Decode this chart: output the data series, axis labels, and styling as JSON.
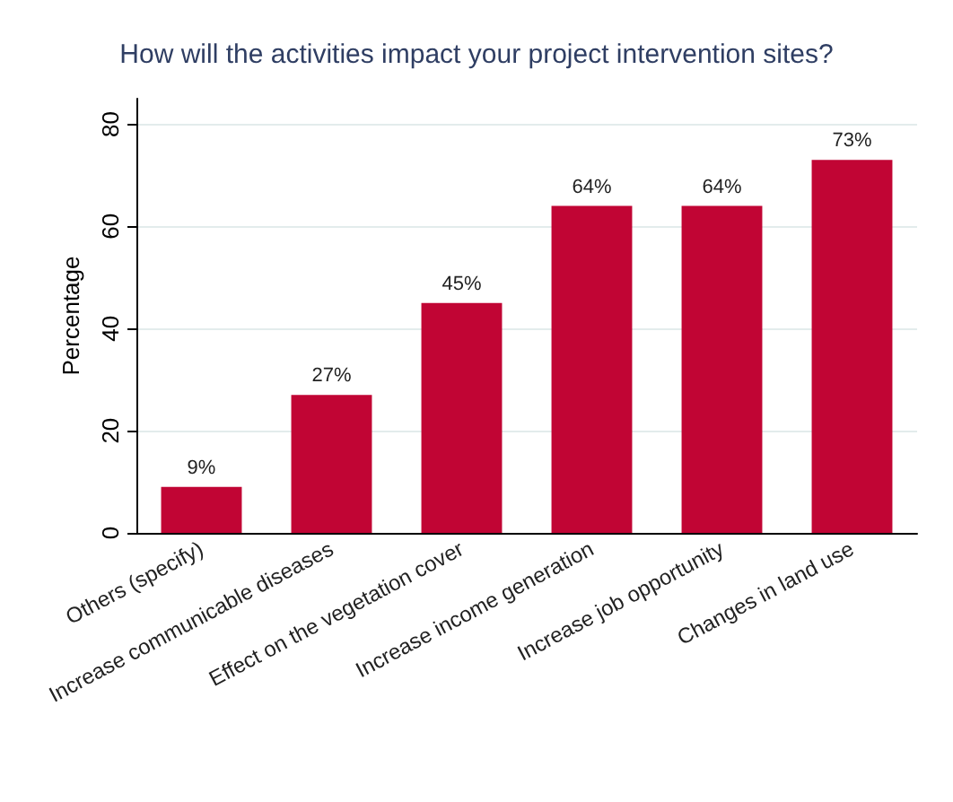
{
  "chart_data": {
    "type": "bar",
    "title": "How will the activities impact your project intervention sites?",
    "ylabel": "Percentage",
    "categories": [
      "Others (specify)",
      "Increase communicable diseases",
      "Effect on the vegetation cover",
      "Increase income generation",
      "Increase job opportunity",
      "Changes in land use"
    ],
    "values": [
      9,
      27,
      45,
      64,
      64,
      73
    ],
    "value_labels": [
      "9%",
      "27%",
      "45%",
      "64%",
      "64%",
      "73%"
    ],
    "color": "#c10534",
    "ylim": [
      0,
      85
    ],
    "yticks": [
      0,
      20,
      40,
      60,
      80
    ],
    "grid": "y"
  }
}
